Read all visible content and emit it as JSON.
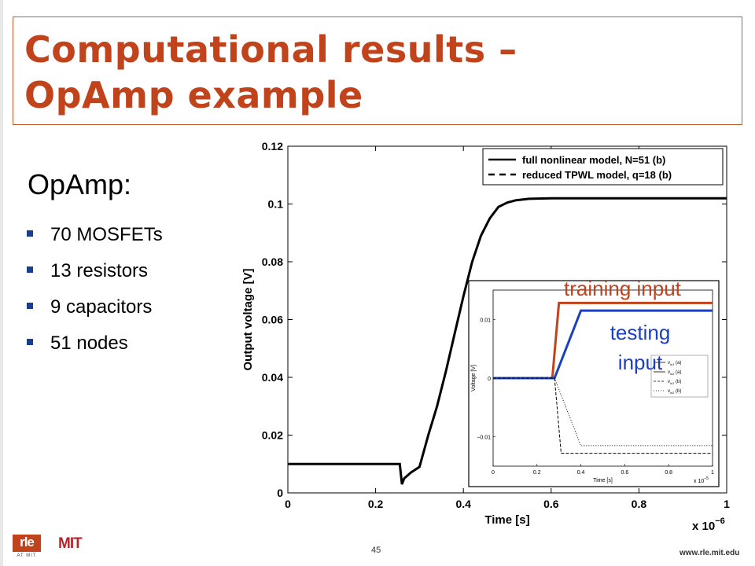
{
  "slide": {
    "title_line1": "Computational results –",
    "title_line2": "OpAmp example",
    "subhead": "OpAmp:",
    "bullets": [
      "70 MOSFETs",
      "13 resistors",
      "9 capacitors",
      "51 nodes"
    ],
    "page_number": "45",
    "footer_url": "www.rle.mit.edu",
    "logo_rle": "rle",
    "logo_rle_sub": "AT MIT",
    "logo_mit": "MIT"
  },
  "annotations": {
    "training_line1": "training input",
    "testing_line1": "testing",
    "testing_line2": "input"
  },
  "colors": {
    "title": "#c1431c",
    "bullet": "#1b3f8f",
    "training": "#c1431c",
    "testing": "#1a3fbf"
  },
  "chart_data": [
    {
      "type": "line",
      "xlabel": "Time [s]",
      "ylabel": "Output voltage [V]",
      "x_multiplier": "x 10",
      "x_multiplier_exp": "−6",
      "xlim": [
        0,
        1
      ],
      "ylim": [
        0,
        0.12
      ],
      "xticks": [
        0,
        0.2,
        0.4,
        0.6,
        0.8,
        1
      ],
      "xtick_labels": [
        "0",
        "0.2",
        "0.4",
        "0.6",
        "0.8",
        "1"
      ],
      "yticks": [
        0,
        0.02,
        0.04,
        0.06,
        0.08,
        0.1,
        0.12
      ],
      "ytick_labels": [
        "0",
        "0.02",
        "0.04",
        "0.06",
        "0.08",
        "0.1",
        "0.12"
      ],
      "legend_position": "top-right",
      "series": [
        {
          "name": "full nonlinear model, N=51 (b)",
          "style": "solid",
          "x": [
            0,
            0.1,
            0.2,
            0.255,
            0.26,
            0.265,
            0.28,
            0.3,
            0.32,
            0.34,
            0.36,
            0.38,
            0.4,
            0.42,
            0.44,
            0.46,
            0.48,
            0.5,
            0.52,
            0.55,
            0.6,
            0.7,
            0.8,
            0.9,
            1.0
          ],
          "y": [
            0.01,
            0.01,
            0.01,
            0.01,
            0.003,
            0.005,
            0.007,
            0.009,
            0.02,
            0.03,
            0.042,
            0.055,
            0.068,
            0.08,
            0.089,
            0.095,
            0.099,
            0.1005,
            0.1013,
            0.1018,
            0.102,
            0.102,
            0.102,
            0.102,
            0.102
          ]
        },
        {
          "name": "reduced TPWL model, q=18 (b)",
          "style": "dashed",
          "x": [
            0,
            0.1,
            0.2,
            0.255,
            0.26,
            0.265,
            0.28,
            0.3,
            0.32,
            0.34,
            0.36,
            0.38,
            0.4,
            0.42,
            0.44,
            0.46,
            0.48,
            0.5,
            0.52,
            0.55,
            0.6,
            0.7,
            0.8,
            0.9,
            1.0
          ],
          "y": [
            0.01,
            0.01,
            0.01,
            0.01,
            0.003,
            0.005,
            0.007,
            0.009,
            0.02,
            0.03,
            0.042,
            0.055,
            0.068,
            0.08,
            0.089,
            0.095,
            0.099,
            0.1005,
            0.1013,
            0.1018,
            0.102,
            0.102,
            0.102,
            0.102,
            0.102
          ]
        }
      ]
    },
    {
      "type": "line",
      "xlabel": "Time [s]",
      "ylabel": "Voltage [V]",
      "x_multiplier": "x 10",
      "x_multiplier_exp": "−5",
      "xlim": [
        0,
        1
      ],
      "ylim": [
        -0.015,
        0.015
      ],
      "xticks": [
        0,
        0.2,
        0.4,
        0.6,
        0.8,
        1
      ],
      "xtick_labels": [
        "0",
        "0.2",
        "0.4",
        "0.6",
        "0.8",
        "1"
      ],
      "yticks": [
        -0.01,
        0,
        0.01
      ],
      "ytick_labels": [
        "−0.01",
        "0",
        "0.01"
      ],
      "legend_position": "right",
      "series": [
        {
          "name": "v_in1 (a)",
          "legend_main": "v",
          "legend_sub": "in1",
          "legend_tag": "(a)",
          "style": "solid",
          "color": "#c1431c",
          "width": 3,
          "x": [
            0,
            0.27,
            0.3,
            1.0
          ],
          "y": [
            0,
            0,
            0.0128,
            0.0128
          ]
        },
        {
          "name": "v_in2 (a)",
          "legend_main": "v",
          "legend_sub": "in2",
          "legend_tag": "(a)",
          "style": "solid",
          "color": "#1a3fbf",
          "width": 3,
          "x": [
            0,
            0.28,
            0.4,
            1.0
          ],
          "y": [
            0,
            0,
            0.0115,
            0.0115
          ]
        },
        {
          "name": "v_in1 (b)",
          "legend_main": "v",
          "legend_sub": "in1",
          "legend_tag": "(b)",
          "style": "dashed",
          "color": "#000000",
          "width": 1,
          "x": [
            0,
            0.28,
            0.31,
            1.0
          ],
          "y": [
            0,
            0,
            -0.0128,
            -0.0128
          ]
        },
        {
          "name": "v_in2 (b)",
          "legend_main": "v",
          "legend_sub": "in2",
          "legend_tag": "(b)",
          "style": "dotted",
          "color": "#000000",
          "width": 1,
          "x": [
            0,
            0.28,
            0.4,
            1.0
          ],
          "y": [
            0,
            0,
            -0.0115,
            -0.0115
          ]
        }
      ]
    }
  ]
}
